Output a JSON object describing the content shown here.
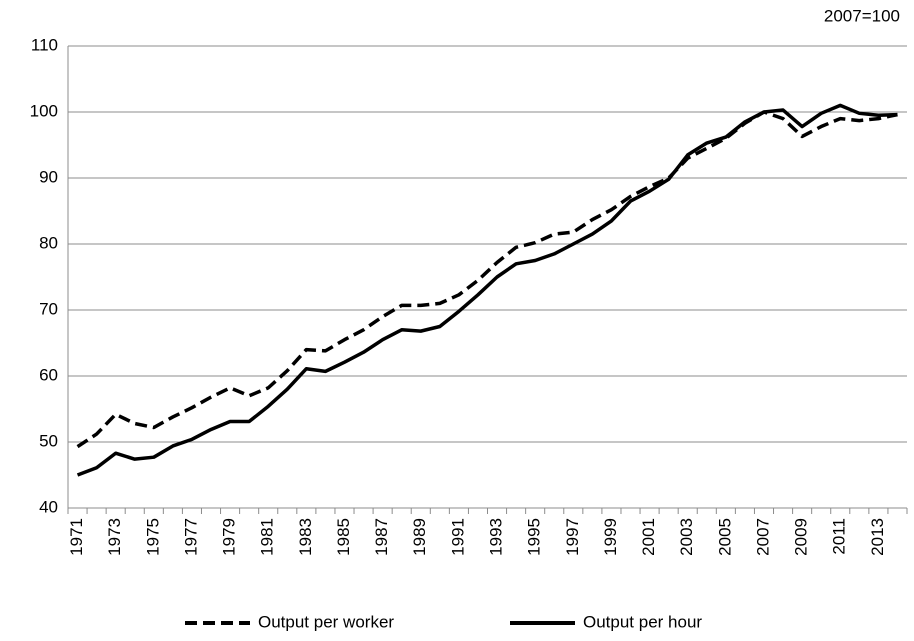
{
  "chart_data": {
    "type": "line",
    "annotation": "2007=100",
    "categories": [
      "1971",
      null,
      "1973",
      null,
      "1975",
      null,
      "1977",
      null,
      "1979",
      null,
      "1981",
      null,
      "1983",
      null,
      "1985",
      null,
      "1987",
      null,
      "1989",
      null,
      "1991",
      null,
      "1993",
      null,
      "1995",
      null,
      "1997",
      null,
      "1999",
      null,
      "2001",
      null,
      "2003",
      null,
      "2005",
      null,
      "2007",
      null,
      "2009",
      null,
      "2011",
      null,
      "2013",
      null
    ],
    "series": [
      {
        "name": "Output per worker",
        "color": "#000000",
        "line_style": "dashed",
        "values": [
          49.3,
          51.2,
          54.2,
          52.8,
          52.2,
          53.8,
          55.2,
          56.8,
          58.2,
          57.0,
          58.2,
          60.8,
          64.0,
          63.8,
          65.5,
          67.0,
          69.0,
          70.7,
          70.7,
          71.0,
          72.3,
          74.5,
          77.2,
          79.5,
          80.2,
          81.5,
          81.8,
          83.7,
          85.2,
          87.2,
          88.7,
          90.0,
          93.0,
          94.5,
          96.0,
          98.3,
          100,
          99.0,
          96.3,
          97.8,
          99.0,
          98.7,
          99.0,
          99.6
        ]
      },
      {
        "name": "Output per hour",
        "color": "#000000",
        "line_style": "solid",
        "values": [
          45.0,
          46.1,
          48.3,
          47.4,
          47.7,
          49.4,
          50.4,
          51.9,
          53.1,
          53.1,
          55.4,
          58.0,
          61.1,
          60.7,
          62.1,
          63.6,
          65.5,
          67.0,
          66.8,
          67.5,
          69.8,
          72.3,
          75.0,
          77.0,
          77.5,
          78.5,
          80.0,
          81.5,
          83.5,
          86.5,
          88.0,
          89.8,
          93.5,
          95.3,
          96.2,
          98.5,
          100,
          100.3,
          97.8,
          99.8,
          101.0,
          99.8,
          99.5,
          99.6
        ]
      }
    ],
    "ylim": [
      40,
      110
    ],
    "yticks": [
      40,
      50,
      60,
      70,
      80,
      90,
      100,
      110
    ],
    "grid": true
  }
}
